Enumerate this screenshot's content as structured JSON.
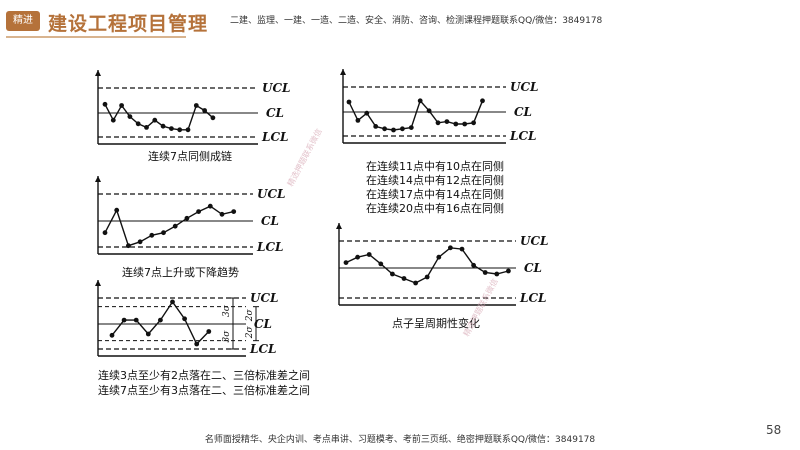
{
  "header": {
    "badge": "精进",
    "title": "建设工程项目管理",
    "note": "二建、监理、一建、一造、二造、安全、消防、咨询、检测课程押题联系QQ/微信：3849178"
  },
  "footer": {
    "note": "名师面授精华、央企内训、考点串讲、习题模考、考前三页纸、绝密押题联系QQ/微信：3849178",
    "page_number": "58"
  },
  "watermark": "精选押题联系微信",
  "labels": {
    "ucl": "UCL",
    "cl": "CL",
    "lcl": "LCL",
    "two_sigma": "2σ",
    "three_sigma": "3σ"
  },
  "charts": [
    {
      "id": "run-same-side",
      "caption_lines": [
        "连续7点同侧成链"
      ],
      "values": [
        0.35,
        -0.3,
        0.3,
        -0.15,
        -0.45,
        -0.6,
        -0.3,
        -0.55,
        -0.65,
        -0.7,
        -0.7,
        0.3,
        0.1,
        -0.2
      ]
    },
    {
      "id": "majority-same-side",
      "caption_lines": [
        "在连续11点中有10点在同侧",
        "在连续14点中有12点在同侧",
        "在连续17点中有14点在同侧",
        "在连续20点中有16点在同侧"
      ],
      "values": [
        0.4,
        -0.35,
        -0.05,
        -0.6,
        -0.7,
        -0.75,
        -0.7,
        -0.65,
        0.45,
        0.05,
        -0.45,
        -0.4,
        -0.5,
        -0.5,
        -0.45,
        0.45
      ]
    },
    {
      "id": "trend",
      "caption_lines": [
        "连续7点上升或下降趋势"
      ],
      "values": [
        -0.45,
        0.4,
        -0.95,
        -0.8,
        -0.55,
        -0.45,
        -0.2,
        0.1,
        0.35,
        0.55,
        0.25,
        0.35
      ]
    },
    {
      "id": "periodic",
      "caption_lines": [
        "点子呈周期性变化"
      ],
      "values": [
        0.2,
        0.4,
        0.5,
        0.15,
        -0.2,
        -0.35,
        -0.5,
        -0.3,
        0.4,
        0.75,
        0.7,
        0.1,
        -0.15,
        -0.2,
        -0.1
      ]
    },
    {
      "id": "sigma-bands",
      "caption_lines": [
        "连续3点至少有2点落在二、三倍标准差之间",
        "连续7点至少有3点落在二、三倍标准差之间"
      ],
      "values": [
        -0.45,
        0.15,
        0.15,
        -0.4,
        0.15,
        0.85,
        0.2,
        -0.8,
        -0.3
      ]
    }
  ]
}
